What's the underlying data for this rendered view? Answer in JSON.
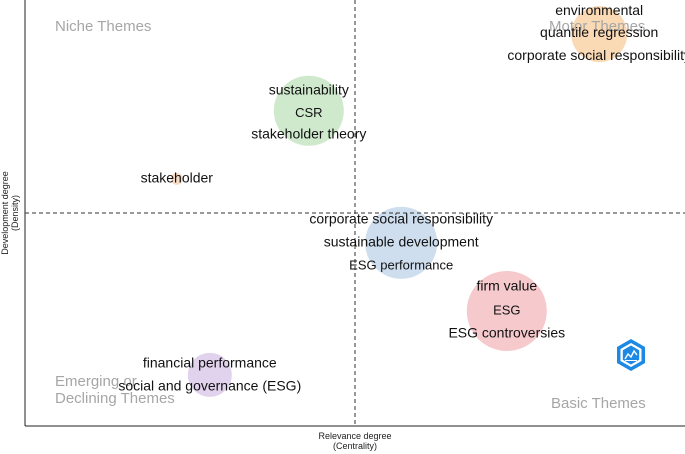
{
  "chart_data": {
    "type": "scatter",
    "title": "",
    "xlabel": [
      "Relevance degree",
      "(Centrality)"
    ],
    "ylabel": [
      "Development degree",
      "(Density)"
    ],
    "xlim": [
      0,
      1
    ],
    "ylim": [
      0,
      1
    ],
    "grid": false,
    "quadrant_labels": {
      "top_left": [
        "Niche Themes"
      ],
      "top_right": [
        "Motor Themes"
      ],
      "bottom_left": [
        "Emerging or",
        "Declining Themes"
      ],
      "bottom_right": [
        "Basic Themes"
      ]
    },
    "clusters": [
      {
        "x": 0.43,
        "y": 0.74,
        "size": 35,
        "color": "#c6e5c2",
        "labels": [
          {
            "text": "sustainability",
            "dy": -20
          },
          {
            "text": "CSR",
            "dy": 3,
            "small": true
          },
          {
            "text": "stakeholder theory",
            "dy": 24
          }
        ]
      },
      {
        "x": 0.23,
        "y": 0.58,
        "size": 6,
        "color": "#f6d6bc",
        "labels": [
          {
            "text": "stakeholder",
            "dy": 0
          }
        ]
      },
      {
        "x": 0.87,
        "y": 0.92,
        "size": 28,
        "color": "#f9d2a8",
        "labels": [
          {
            "text": "environmental",
            "dy": -23
          },
          {
            "text": "quantile regression",
            "dy": -1
          },
          {
            "text": "corporate social responsibility",
            "dy": 22
          }
        ]
      },
      {
        "x": 0.57,
        "y": 0.43,
        "size": 36,
        "color": "#c5d8ec",
        "labels": [
          {
            "text": "corporate social responsibility",
            "dy": -23
          },
          {
            "text": "sustainable development",
            "dy": 0
          },
          {
            "text": "ESG performance",
            "dy": 23,
            "small": true
          }
        ]
      },
      {
        "x": 0.73,
        "y": 0.27,
        "size": 40,
        "color": "#f5c0c3",
        "labels": [
          {
            "text": "firm value",
            "dy": -24
          },
          {
            "text": "ESG",
            "dy": 0,
            "small": true
          },
          {
            "text": "ESG controversies",
            "dy": 23
          }
        ]
      },
      {
        "x": 0.28,
        "y": 0.12,
        "size": 22,
        "color": "#dccaea",
        "labels": [
          {
            "text": "financial performance",
            "dy": -11
          },
          {
            "text": "social and governance (ESG)",
            "dy": 12
          }
        ]
      }
    ]
  }
}
